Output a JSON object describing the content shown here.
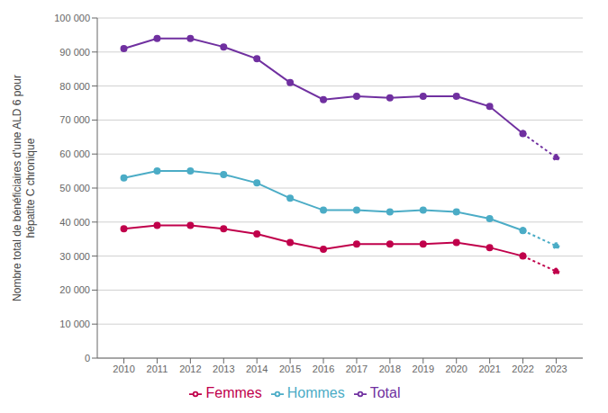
{
  "chart_data": {
    "type": "line",
    "y_label": "Nombre total de bénéficiaires d'une ALD 6 pour\nhépatite C chronique",
    "x": [
      2010,
      2011,
      2012,
      2013,
      2014,
      2015,
      2016,
      2017,
      2018,
      2019,
      2020,
      2021,
      2022,
      2023
    ],
    "series": [
      {
        "name": "Hommes",
        "color": "#4BACC6",
        "marker": "circle",
        "line_style": "solid",
        "values": [
          53000,
          55000,
          55000,
          54000,
          51500,
          47000,
          43500,
          43500,
          43000,
          43500,
          43000,
          41000,
          37500,
          33000
        ]
      },
      {
        "name": "Femmes",
        "color": "#C0004B",
        "marker": "circle",
        "line_style": "solid",
        "values": [
          38000,
          39000,
          39000,
          38000,
          36500,
          34000,
          32000,
          33500,
          33500,
          33500,
          34000,
          32500,
          30000,
          25500
        ]
      },
      {
        "name": "Total",
        "color": "#7030A0",
        "marker": "circle",
        "line_style": "solid",
        "values": [
          91000,
          94000,
          94000,
          91500,
          88000,
          81000,
          76000,
          77000,
          76500,
          77000,
          77000,
          74000,
          66000,
          59000
        ]
      }
    ],
    "xlim": [
      2009.2,
      2023.8
    ],
    "xticks": [
      2010,
      2011,
      2012,
      2013,
      2014,
      2015,
      2016,
      2017,
      2018,
      2019,
      2020,
      2021,
      2022,
      2023
    ],
    "ylim": [
      0,
      100000
    ],
    "yticks": [
      0,
      {
        "value": 10000,
        "label": "10 000"
      },
      {
        "value": 20000,
        "label": "20 000"
      },
      {
        "value": 30000,
        "label": "30 000"
      },
      {
        "value": 40000,
        "label": "40 000"
      },
      {
        "value": 50000,
        "label": "50 000"
      },
      {
        "value": 60000,
        "label": "60 000"
      },
      {
        "value": 70000,
        "label": "70 000"
      },
      {
        "value": 80000,
        "label": "80 000"
      },
      {
        "value": 90000,
        "label": "90 000"
      },
      {
        "value": 100000,
        "label": "100 000"
      }
    ],
    "grid": true,
    "legend": "bottom"
  }
}
